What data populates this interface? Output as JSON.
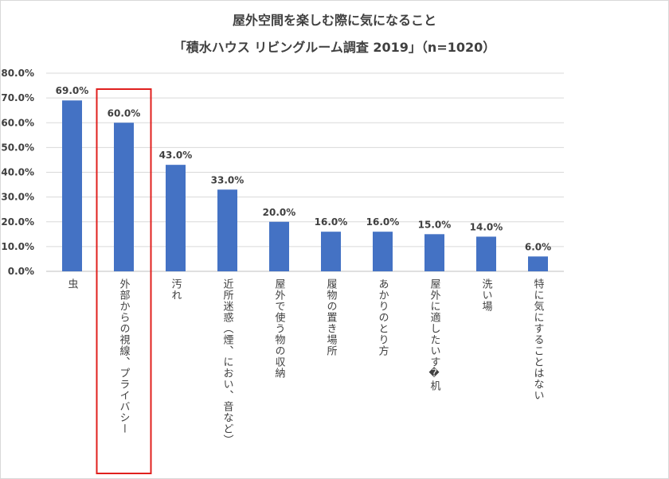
{
  "chart_data": {
    "type": "bar",
    "title": "屋外空間を楽しむ際に気になること",
    "subtitle": "「積水ハウス リビングルーム調査 2019」（n=1020）",
    "categories": [
      "虫",
      "外部からの視線、プライバシー",
      "汚れ",
      "近所迷惑（煙、におい、音など）",
      "屋外で使う物の収納",
      "履物の置き場所",
      "あかりのとり方",
      "屋外に適したいす�机",
      "洗い場",
      "特に気にすることはない"
    ],
    "values": [
      69.0,
      60.0,
      43.0,
      33.0,
      20.0,
      16.0,
      16.0,
      15.0,
      14.0,
      6.0
    ],
    "value_labels": [
      "69.0%",
      "60.0%",
      "43.0%",
      "33.0%",
      "20.0%",
      "16.0%",
      "16.0%",
      "15.0%",
      "14.0%",
      "6.0%"
    ],
    "yticks": [
      "0.0%",
      "10.0%",
      "20.0%",
      "30.0%",
      "40.0%",
      "50.0%",
      "60.0%",
      "70.0%",
      "80.0%"
    ],
    "ylim": [
      0,
      80
    ],
    "xlabel": "",
    "ylabel": "",
    "grid": true,
    "bar_color": "#4472c4",
    "highlight_color": "#e0201e",
    "highlight_index": 1
  }
}
